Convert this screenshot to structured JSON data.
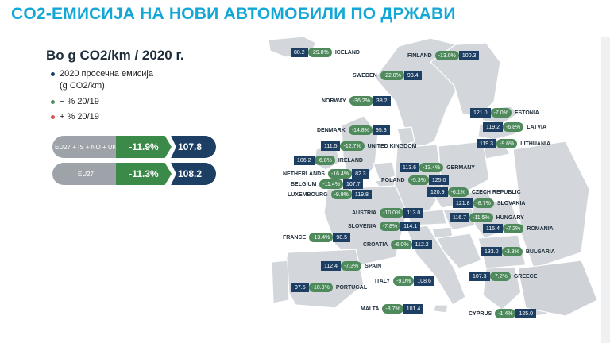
{
  "title": "CO2-ЕМИСИЈА НА НОВИ АВТОМОБИЛИ ПО ДРЖАВИ",
  "subtitle": "Во g CO2/km / 2020 г.",
  "legend": {
    "avg": "2020 просечна емисија",
    "avg_unit": "(g CO2/km)",
    "minus": "− %  20/19",
    "plus": "+ %  20/19"
  },
  "summary": [
    {
      "label": "EU27 + IS + NO + UK",
      "pct": "-11.9%",
      "value": "107.8"
    },
    {
      "label": "EU27",
      "pct": "-11.3%",
      "value": "108.2"
    }
  ],
  "colors": {
    "title": "#12a7d6",
    "value_bg": "#1d3f63",
    "decrease": "#4f8a5c",
    "increase": "#d9534f",
    "label_bg": "#9da3a8"
  },
  "countries": [
    {
      "name": "ICELAND",
      "value": "80.2",
      "pct": "-29.8%"
    },
    {
      "name": "FINLAND",
      "value": "100.3",
      "pct": "-13.0%"
    },
    {
      "name": "SWEDEN",
      "value": "93.4",
      "pct": "-22.0%"
    },
    {
      "name": "NORWAY",
      "value": "38.2",
      "pct": "-36.2%"
    },
    {
      "name": "ESTONIA",
      "value": "121.0",
      "pct": "-7.0%"
    },
    {
      "name": "DENMARK",
      "value": "95.3",
      "pct": "-14.8%"
    },
    {
      "name": "LATVIA",
      "value": "119.2",
      "pct": "-6.8%"
    },
    {
      "name": "LITHUANIA",
      "value": "119.3",
      "pct": "-9.6%"
    },
    {
      "name": "UNITED KINGDOM",
      "value": "111.5",
      "pct": "-12.7%"
    },
    {
      "name": "IRELAND",
      "value": "106.2",
      "pct": "-6.8%"
    },
    {
      "name": "GERMANY",
      "value": "113.6",
      "pct": "-13.4%"
    },
    {
      "name": "NETHERLANDS",
      "value": "82.3",
      "pct": "-16.4%"
    },
    {
      "name": "POLAND",
      "value": "125.0",
      "pct": "-5.3%"
    },
    {
      "name": "BELGIUM",
      "value": "107.7",
      "pct": "-11.4%"
    },
    {
      "name": "LUXEMBOURG",
      "value": "119.8",
      "pct": "-9.9%"
    },
    {
      "name": "CZECH REPUBLIC",
      "value": "120.9",
      "pct": "-6.1%"
    },
    {
      "name": "SLOVAKIA",
      "value": "121.8",
      "pct": "-8.7%"
    },
    {
      "name": "AUSTRIA",
      "value": "113.0",
      "pct": "-10.0%"
    },
    {
      "name": "HUNGARY",
      "value": "116.7",
      "pct": "-11.5%"
    },
    {
      "name": "SLOVENIA",
      "value": "114.1",
      "pct": "-7.8%"
    },
    {
      "name": "ROMANIA",
      "value": "115.4",
      "pct": "-7.2%"
    },
    {
      "name": "FRANCE",
      "value": "98.5",
      "pct": "-13.4%"
    },
    {
      "name": "CROATIA",
      "value": "112.2",
      "pct": "-6.0%"
    },
    {
      "name": "BULGARIA",
      "value": "133.0",
      "pct": "-3.3%"
    },
    {
      "name": "SPAIN",
      "value": "112.4",
      "pct": "-7.3%"
    },
    {
      "name": "GREECE",
      "value": "107.3",
      "pct": "-7.2%"
    },
    {
      "name": "PORTUGAL",
      "value": "97.5",
      "pct": "-10.9%"
    },
    {
      "name": "ITALY",
      "value": "108.6",
      "pct": "-9.0%"
    },
    {
      "name": "MALTA",
      "value": "101.4",
      "pct": "-3.7%"
    },
    {
      "name": "CYPRUS",
      "value": "125.0",
      "pct": "-1.4%"
    }
  ]
}
